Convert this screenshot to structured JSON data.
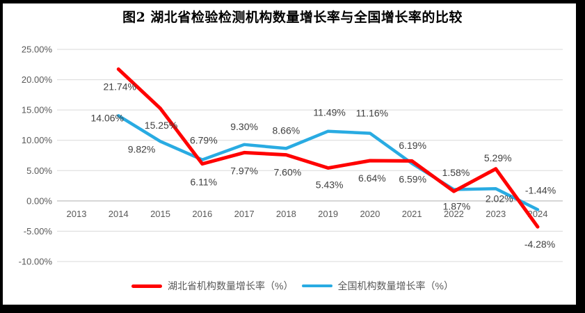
{
  "chart_data": {
    "type": "line",
    "title": "图2  湖北省检验检测机构数量增长率与全国增长率的比较",
    "categories": [
      "2013",
      "2014",
      "2015",
      "2016",
      "2017",
      "2018",
      "2019",
      "2020",
      "2021",
      "2022",
      "2023",
      "2024"
    ],
    "series": [
      {
        "name": "湖北省机构数量增长率（%）",
        "color": "#FF0000",
        "values": [
          null,
          21.74,
          15.25,
          6.11,
          7.97,
          7.6,
          5.43,
          6.64,
          6.59,
          1.58,
          5.29,
          -4.28
        ],
        "label_dx": [
          0,
          2,
          1,
          2,
          0,
          2,
          2,
          3,
          1,
          3,
          3,
          3
        ],
        "label_dy": [
          0,
          25,
          24,
          26,
          26,
          25,
          24,
          25,
          26,
          -27,
          -16,
          25
        ]
      },
      {
        "name": "全国机构数量增长率（%）",
        "color": "#29ABE2",
        "values": [
          null,
          14.06,
          9.82,
          6.79,
          9.3,
          8.66,
          11.49,
          11.16,
          6.19,
          1.87,
          2.02,
          -1.44
        ],
        "label_dx": [
          0,
          -16,
          -27,
          2,
          0,
          0,
          2,
          3,
          1,
          4,
          5,
          4
        ],
        "label_dy": [
          0,
          3,
          11,
          -28,
          -26,
          -26,
          -27,
          -29,
          -26,
          24,
          14,
          -28
        ]
      }
    ],
    "ylim": [
      -10,
      25
    ],
    "ytick_step": 5,
    "ytick_suffix": "%",
    "grid": true,
    "legend_position": "bottom",
    "colors": {
      "gridline": "#D9D9D9",
      "axis_line": "#BFBFBF",
      "tick_label": "#595959",
      "data_label": "#404040",
      "chart_background": "#FFFFFF",
      "frame": "#000000"
    }
  }
}
